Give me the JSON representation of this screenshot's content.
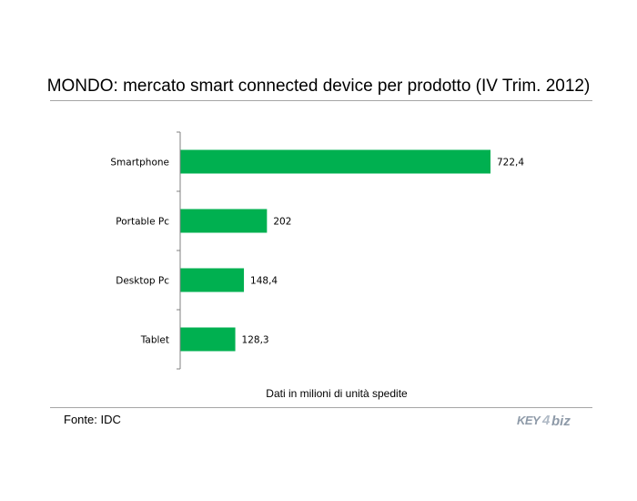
{
  "chart_data": {
    "type": "bar",
    "orientation": "horizontal",
    "title": "MONDO: mercato smart connected device per prodotto (IV Trim. 2012)",
    "categories": [
      "Smartphone",
      "Portable Pc",
      "Desktop Pc",
      "Tablet"
    ],
    "values": [
      722.4,
      202,
      148.4,
      128.3
    ],
    "value_labels": [
      "722,4",
      "202",
      "148,4",
      "128,3"
    ],
    "xlim": [
      0,
      722.4
    ],
    "grid": false,
    "legend": "none",
    "bar_color": "#00b050",
    "caption": "Dati in milioni di unità spedite"
  },
  "footer": {
    "source": "Fonte: IDC",
    "logo_text": "KEY4biz"
  },
  "colors": {
    "bar": "#00b050",
    "axis": "#808080",
    "rule": "#a6a6a6",
    "logo": "#8e9aa8"
  }
}
